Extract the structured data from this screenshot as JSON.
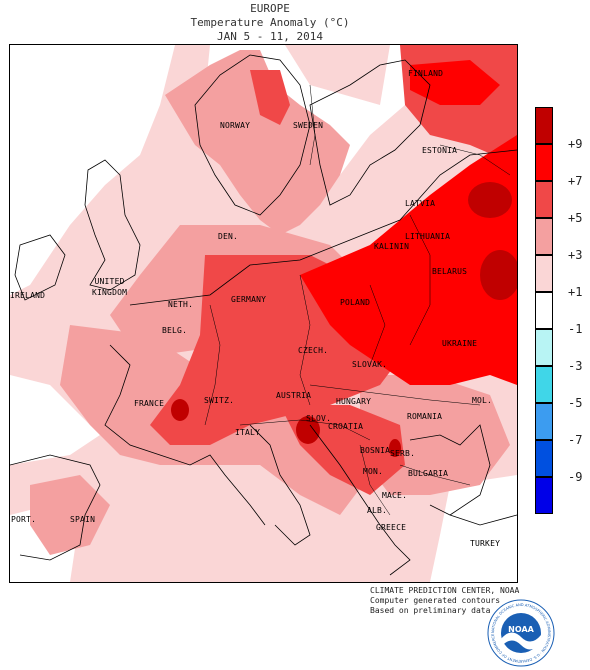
{
  "header": {
    "region": "EUROPE",
    "subtitle": "Temperature Anomaly (°C)",
    "dates": "JAN 5 - 11, 2014"
  },
  "legend": {
    "units": "°C",
    "bins": [
      {
        "label": "+9",
        "color": "#c00000"
      },
      {
        "label": "+7",
        "color": "#ff0000"
      },
      {
        "label": "+5",
        "color": "#f04848"
      },
      {
        "label": "+3",
        "color": "#f4a0a0"
      },
      {
        "label": "+1",
        "color": "#fad6d6"
      },
      {
        "label": "-1",
        "color": "#ffffff"
      },
      {
        "label": "-3",
        "color": "#b8f4f4"
      },
      {
        "label": "-5",
        "color": "#40d6e8"
      },
      {
        "label": "-7",
        "color": "#3c9cf0"
      },
      {
        "label": "-9",
        "color": "#0050e0"
      },
      {
        "label": "",
        "color": "#0000e8"
      }
    ]
  },
  "map_labels": {
    "finland": "FINLAND",
    "norway": "NORWAY",
    "sweden": "SWEDEN",
    "estonia": "ESTONIA",
    "latvia": "LATVIA",
    "lithuania": "LITHUANIA",
    "kalinin": "KALININ",
    "belarus": "BELARUS",
    "den": "DEN.",
    "uk": "UNITED\nKINGDOM",
    "ireland": "IRELAND",
    "neth": "NETH.",
    "germany": "GERMANY",
    "poland": "POLAND",
    "belg": "BELG.",
    "czech": "CZECH.",
    "slovak": "SLOVAK.",
    "ukraine": "UKRAINE",
    "france": "FRANCE",
    "switz": "SWITZ.",
    "austria": "AUSTRIA",
    "hungary": "HUNGARY",
    "mol": "MOL.",
    "romania": "ROMANIA",
    "slov": "SLOV.",
    "croatia": "CROATIA",
    "italy": "ITALY",
    "bosnia": "BOSNIA",
    "serb": "SERB.",
    "bulgaria": "BULGARIA",
    "mon": "MON.",
    "mace": "MACE.",
    "port": "PORT.",
    "spain": "SPAIN",
    "alb": "ALB.",
    "greece": "GREECE",
    "turkey": "TURKEY"
  },
  "credits": {
    "line1": "CLIMATE PREDICTION CENTER, NOAA",
    "line2": "Computer generated contours",
    "line3": "Based on preliminary data"
  },
  "logo": {
    "center_text": "NOAA",
    "ring_text": "NATIONAL OCEANIC AND ATMOSPHERIC ADMINISTRATION · U.S. DEPARTMENT OF COMMERCE ·",
    "color": "#1a5fb4"
  }
}
